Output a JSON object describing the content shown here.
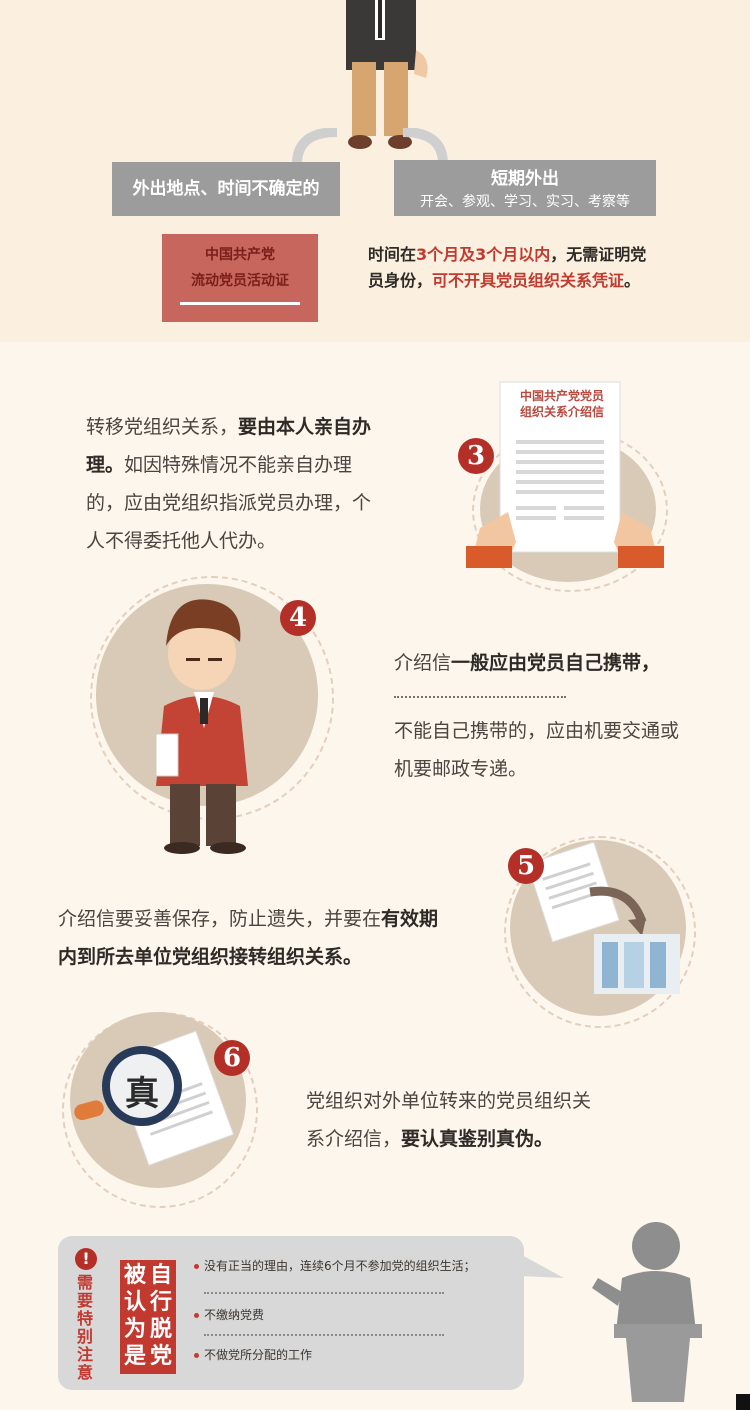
{
  "flow": {
    "left_option": "外出地点、时间不确定的",
    "right_title": "短期外出",
    "right_sub": "开会、参观、学习、实习、考察等",
    "certificate_line1": "中国共产党",
    "certificate_line2": "流动党员活动证",
    "note_p1": "时间在",
    "note_h1": "3个月及3个月以内",
    "note_p2": "，无需证明党员身份，",
    "note_h2": "可不开具党员组织关系凭证",
    "note_p3": "。"
  },
  "step3": {
    "number": "3",
    "letter_title1": "中国共产党党员",
    "letter_title2": "组织关系介绍信",
    "text_plain1": "转移党组织关系，",
    "text_bold": "要由本人亲自办理。",
    "text_plain2": "如因特殊情况不能亲自办理的，应由党组织指派党员办理，个人不得委托他人代办。"
  },
  "step4": {
    "number": "4",
    "text_plain1": "介绍信",
    "text_bold": "一般应由党员自己携带，",
    "text_plain2": "不能自己携带的，应由机要交通或机要邮政专递。"
  },
  "step5": {
    "number": "5",
    "text_plain": "介绍信要妥善保存，防止遗失，并要在",
    "text_bold": "有效期内到所去单位党组织接转组织关系。"
  },
  "step6": {
    "number": "6",
    "seal_char": "真",
    "text_plain": "党组织对外单位转来的党员组织关系介绍信，",
    "text_bold": "要认真鉴别真伪。"
  },
  "notice": {
    "warn_mark": "!",
    "side_label": "需要特别注意",
    "label_col1": "被认为是",
    "label_col2": "自行脱党",
    "items": [
      "没有正当的理由，连续6个月不参加党的组织生活；",
      "不缴纳党费",
      "不做党所分配的工作"
    ]
  },
  "colors": {
    "accent_red": "#c2392f",
    "badge_red": "#b32f28",
    "background": "#fdf6ec",
    "gray_box": "#9c9c9c"
  }
}
